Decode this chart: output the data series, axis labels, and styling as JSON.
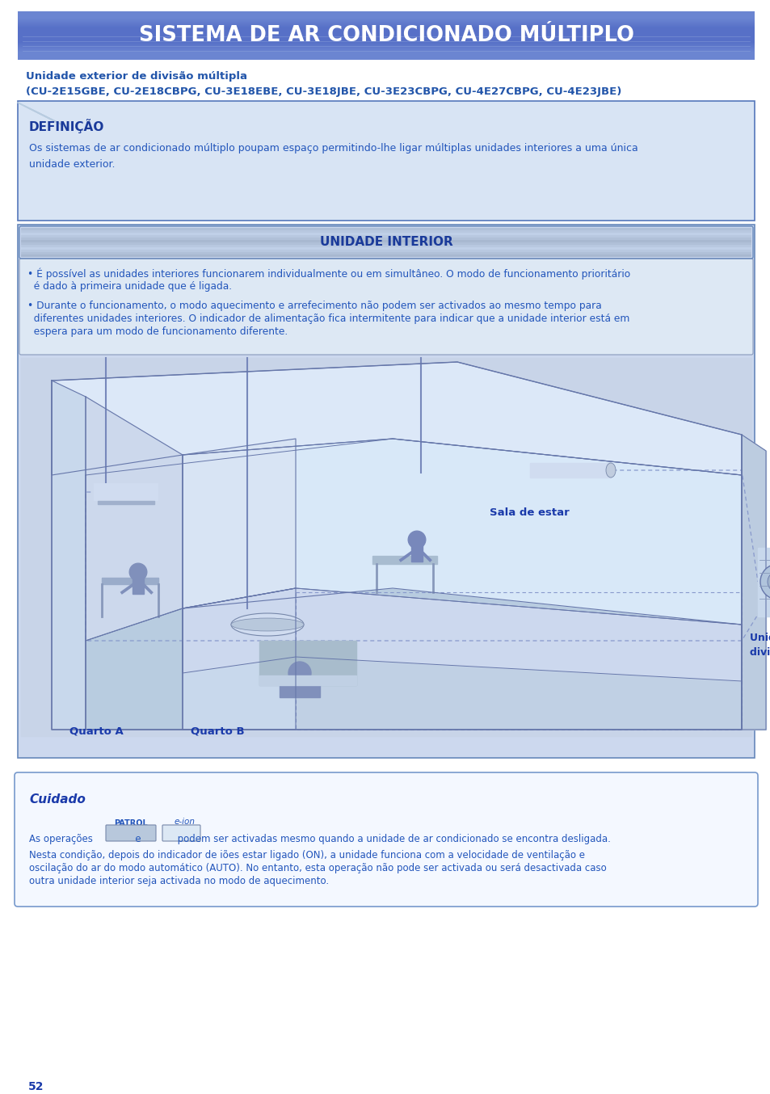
{
  "page_bg": "#ffffff",
  "title_text": "SISTEMA DE AR CONDICIONADO MÚLTIPLO",
  "title_color": "#ffffff",
  "title_bg": "#5570c8",
  "subtitle_line1": "Unidade exterior de divisão múltipla",
  "subtitle_line2": "(CU-2E15GBE, CU-2E18CBPG, CU-3E18EBE, CU-3E18JBE, CU-3E23CBPG, CU-4E27CBPG, CU-4E23JBE)",
  "subtitle_color": "#2255aa",
  "main_box_bg": "#d8e4f4",
  "main_box_border": "#5577bb",
  "definicao_title": "DEFINIÇÃO",
  "definicao_title_color": "#1a3a9a",
  "definicao_text_line1": "Os sistemas de ar condicionado múltiplo poupam espaço permitindo-lhe ligar múltiplas unidades interiores a uma única",
  "definicao_text_line2": "unidade exterior.",
  "definicao_text_color": "#2255bb",
  "inner_box_bg": "#ccd8ee",
  "inner_box_border": "#6688bb",
  "unidade_header_bg1": "#aabbd8",
  "unidade_header_bg2": "#bccce8",
  "unidade_interior_title": "UNIDADE INTERIOR",
  "unidade_title_color": "#1a3a9a",
  "bullet_box_bg": "#dde8f4",
  "bullet_box_border": "#8899bb",
  "bullet1_line1": "• É possível as unidades interiores funcionarem individualmente ou em simultâneo. O modo de funcionamento prioritário",
  "bullet1_line2": "  é dado à primeira unidade que é ligada.",
  "bullet2_line1": "• Durante o funcionamento, o modo aquecimento e arrefecimento não podem ser activados ao mesmo tempo para",
  "bullet2_line2": "  diferentes unidades interiores. O indicador de alimentação fica intermitente para indicar que a unidade interior está em",
  "bullet2_line3": "  espera para um modo de funcionamento diferente.",
  "bullet_color": "#2255bb",
  "illus_bg": "#c8d4e8",
  "room_floor_color": "#b8cce0",
  "room_wall_left_color": "#ccd8ec",
  "room_wall_back_color": "#d8e4f4",
  "room_wall_right_color": "#c0ccdf",
  "room_outline_color": "#6677aa",
  "pipe_color": "#7788bb",
  "dashed_color": "#8899cc",
  "label_sala": "Sala de estar",
  "label_quarto_a": "Quarto A",
  "label_quarto_b": "Quarto B",
  "label_unidade_ext_1": "Unidade exterior de",
  "label_unidade_ext_2": "divisão múltipla",
  "label_color": "#1a3aaa",
  "cuidado_box_bg": "#f4f8ff",
  "cuidado_box_border": "#7799cc",
  "cuidado_title": "Cuidado",
  "cuidado_title_color": "#1a3aaa",
  "cuidado_patrol": "PATROL",
  "cuidado_eion": "e-ion",
  "cuidado_line1": "As operações              e            podem ser activadas mesmo quando a unidade de ar condicionado se encontra desligada.",
  "cuidado_line2": "Nesta condição, depois do indicador de iões estar ligado (ON), a unidade funciona com a velocidade de ventilação e",
  "cuidado_line3": "oscilação do ar do modo automático (AUTO). No entanto, esta operação não pode ser activada ou será desactivada caso",
  "cuidado_line4": "outra unidade interior seja activada no modo de aquecimento.",
  "cuidado_text_color": "#2255bb",
  "page_number": "52",
  "page_number_color": "#1a3aaa",
  "illus_accent": "#a8bcda",
  "person_color": "#7788bb",
  "ac_unit_color": "#d0dcf0",
  "ac_unit_border": "#7788aa"
}
